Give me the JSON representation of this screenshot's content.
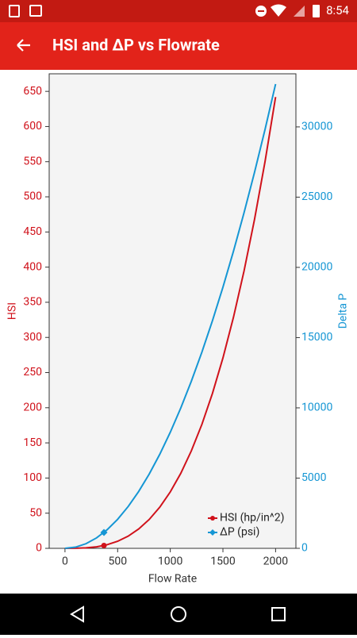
{
  "status_bar": {
    "time": "8:54"
  },
  "app_bar": {
    "title": "HSI and ΔP vs Flowrate"
  },
  "chart_data": {
    "type": "line",
    "x_label": "Flow Rate",
    "y_label": "HSI",
    "y2_label": "Delta P",
    "x": [
      0,
      100,
      200,
      300,
      400,
      500,
      600,
      700,
      800,
      900,
      1000,
      1100,
      1200,
      1300,
      1400,
      1500,
      1600,
      1700,
      1800,
      1900,
      2000
    ],
    "series": [
      {
        "name": "HSI (hp/in^2)",
        "color": "#d0121b",
        "axis": "y",
        "values": [
          0,
          0.08,
          0.64,
          2.17,
          5.14,
          10.03,
          17.33,
          27.52,
          41.09,
          58.5,
          80.25,
          106.8,
          138.7,
          176.3,
          220.2,
          270.8,
          328.7,
          394.3,
          468.0,
          550.4,
          642
        ],
        "marker": {
          "x": 370,
          "y": 4
        }
      },
      {
        "name": "ΔP (psi)",
        "color": "#1596d4",
        "axis": "y2",
        "values": [
          0,
          83,
          331,
          744,
          1322,
          2066,
          2975,
          4049,
          5288,
          6693,
          8263,
          9998,
          11898,
          13964,
          16195,
          18591,
          21152,
          23879,
          26771,
          29828,
          33050
        ],
        "marker": {
          "x": 370,
          "y": 1130
        }
      }
    ],
    "xlim": [
      -150,
      2193
    ],
    "xticks": [
      0,
      500,
      1000,
      1500,
      2000
    ],
    "ylim": [
      0,
      675
    ],
    "yticks": [
      0,
      50,
      100,
      150,
      200,
      250,
      300,
      350,
      400,
      450,
      500,
      550,
      600,
      650
    ],
    "y2lim": [
      0,
      33780
    ],
    "y2ticks": [
      0,
      5000,
      10000,
      15000,
      20000,
      25000,
      30000
    ],
    "legend": "lower-right"
  }
}
